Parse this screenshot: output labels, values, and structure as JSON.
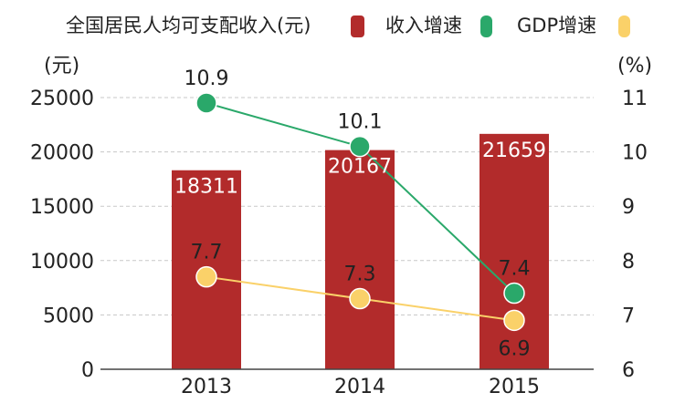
{
  "chart_data": {
    "type": "bar",
    "categories": [
      "2013",
      "2014",
      "2015"
    ],
    "series": [
      {
        "name": "全国居民人均可支配收入(元)",
        "type": "bar",
        "axis": "left",
        "values": [
          18311,
          20167,
          21659
        ],
        "color": "#b22b2b"
      },
      {
        "name": "收入增速",
        "type": "line",
        "axis": "right",
        "values": [
          10.9,
          10.1,
          7.4
        ],
        "color": "#2aa86a"
      },
      {
        "name": "GDP增速",
        "type": "line",
        "axis": "right",
        "values": [
          7.7,
          7.3,
          6.9
        ],
        "color": "#fad169"
      }
    ],
    "y_left": {
      "unit_label": "(元)",
      "ylim": [
        0,
        25000
      ],
      "ticks": [
        "0",
        "5000",
        "10000",
        "15000",
        "20000",
        "25000"
      ]
    },
    "y_right": {
      "unit_label": "(%)",
      "ylim": [
        6,
        11
      ],
      "ticks": [
        "6",
        "7",
        "8",
        "9",
        "10",
        "11"
      ]
    },
    "grid": true,
    "legend_position": "top"
  }
}
